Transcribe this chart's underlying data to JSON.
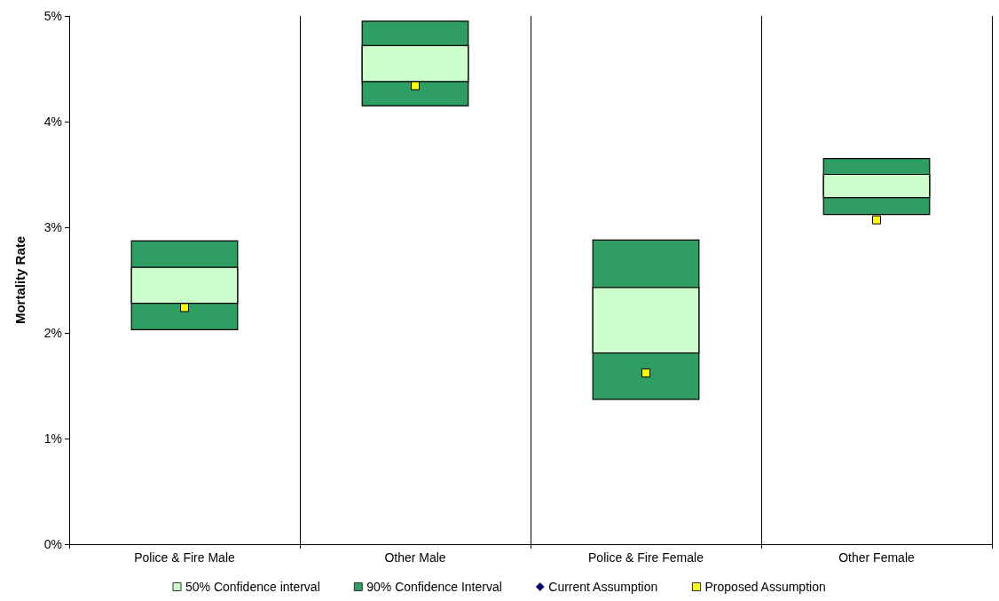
{
  "chart_data": {
    "type": "bar",
    "ylabel": "Mortality Rate",
    "categories": [
      "Police & Fire Male",
      "Other Male",
      "Police & Fire Female",
      "Other Female"
    ],
    "ylim": [
      0,
      5
    ],
    "yticks": [
      {
        "value": 0,
        "label": "0%"
      },
      {
        "value": 1,
        "label": "1%"
      },
      {
        "value": 2,
        "label": "2%"
      },
      {
        "value": 3,
        "label": "3%"
      },
      {
        "value": 4,
        "label": "4%"
      },
      {
        "value": 5,
        "label": "5%"
      }
    ],
    "grid": "x",
    "legend": "bottom",
    "series": [
      {
        "name": "50% Confidence interval",
        "color": "#ccffcc",
        "base": [
          2.28,
          4.38,
          1.81,
          3.28
        ],
        "values": [
          0.34,
          0.34,
          0.62,
          0.22
        ]
      },
      {
        "name": "90% Confidence Interval",
        "color": "#2e9e62",
        "base": [
          2.03,
          4.15,
          1.37,
          3.12
        ],
        "values": [
          0.84,
          0.8,
          1.51,
          0.53
        ]
      },
      {
        "name": "Current Assumption",
        "type": "scatter",
        "marker": "diamond",
        "color": "#000080",
        "x": [
          "Police & Fire Male",
          "Other Male",
          "Police & Fire Female",
          "Other Female"
        ],
        "values": [
          null,
          null,
          null,
          null
        ]
      },
      {
        "name": "Proposed Assumption",
        "type": "scatter",
        "marker": "square",
        "color": "#ffff00",
        "x": [
          "Police & Fire Male",
          "Other Male",
          "Police & Fire Female",
          "Other Female"
        ],
        "values": [
          2.24,
          4.34,
          1.62,
          3.07
        ]
      }
    ]
  }
}
